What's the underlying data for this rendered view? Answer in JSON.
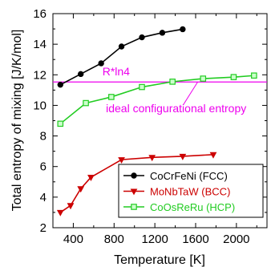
{
  "chart_data": {
    "type": "line",
    "xlabel": "Temperature [K]",
    "ylabel": "Total entropy of mixing [J/K/mol]",
    "xlim": [
      200,
      2300
    ],
    "ylim": [
      2,
      16
    ],
    "xticks": [
      400,
      800,
      1200,
      1600,
      2000
    ],
    "yticks": [
      2,
      4,
      6,
      8,
      10,
      12,
      14,
      16
    ],
    "grid": false,
    "legend_position": "bottom-right",
    "series": [
      {
        "name": "CoCrFeNi (FCC)",
        "color": "#000000",
        "marker": "circle",
        "x": [
          273,
          473,
          673,
          873,
          1073,
          1273,
          1473
        ],
        "y": [
          11.35,
          12.05,
          12.75,
          13.85,
          14.45,
          14.75,
          14.98
        ]
      },
      {
        "name": "MoNbTaW (BCC)",
        "color": "#cc0000",
        "marker": "triangle-down",
        "x": [
          273,
          373,
          473,
          573,
          873,
          1173,
          1473,
          1773
        ],
        "y": [
          3.0,
          3.45,
          4.55,
          5.3,
          6.45,
          6.6,
          6.67,
          6.78
        ]
      },
      {
        "name": "CoOsReRu (HCP)",
        "color": "#22cc22",
        "marker": "square",
        "x": [
          273,
          523,
          773,
          1073,
          1373,
          1673,
          1973,
          2173
        ],
        "y": [
          8.8,
          10.15,
          10.55,
          11.2,
          11.55,
          11.75,
          11.85,
          11.95
        ]
      }
    ],
    "reference_line": {
      "label": "R*ln4",
      "value": 11.53,
      "color": "#ee00ee"
    },
    "annotations": [
      {
        "text": "ideal configurational entropy",
        "color": "#ee00ee"
      }
    ]
  }
}
